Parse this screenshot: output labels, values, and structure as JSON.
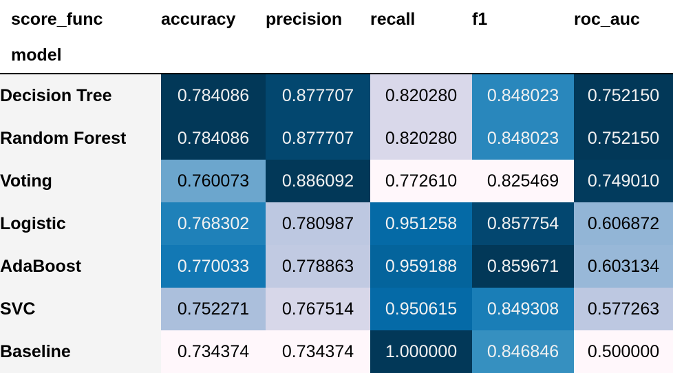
{
  "chart_data": {
    "type": "table",
    "index_name": "model",
    "columns_name": "score_func",
    "columns": [
      "accuracy",
      "precision",
      "recall",
      "f1",
      "roc_auc"
    ],
    "rows": [
      {
        "model": "Decision Tree",
        "values": [
          "0.784086",
          "0.877707",
          "0.820280",
          "0.848023",
          "0.752150"
        ]
      },
      {
        "model": "Random Forest",
        "values": [
          "0.784086",
          "0.877707",
          "0.820280",
          "0.848023",
          "0.752150"
        ]
      },
      {
        "model": "Voting",
        "values": [
          "0.760073",
          "0.886092",
          "0.772610",
          "0.825469",
          "0.749010"
        ]
      },
      {
        "model": "Logistic",
        "values": [
          "0.768302",
          "0.780987",
          "0.951258",
          "0.857754",
          "0.606872"
        ]
      },
      {
        "model": "AdaBoost",
        "values": [
          "0.770033",
          "0.778863",
          "0.959188",
          "0.859671",
          "0.603134"
        ]
      },
      {
        "model": "SVC",
        "values": [
          "0.752271",
          "0.767514",
          "0.950615",
          "0.849308",
          "0.577263"
        ]
      },
      {
        "model": "Baseline",
        "values": [
          "0.734374",
          "0.734374",
          "1.000000",
          "0.846846",
          "0.500000"
        ]
      }
    ],
    "colormap": "PuBu",
    "colors": {
      "low": "#fff7fb",
      "high": "#023858",
      "light_text": "#f1f1f1",
      "dark_text": "#000000"
    }
  }
}
